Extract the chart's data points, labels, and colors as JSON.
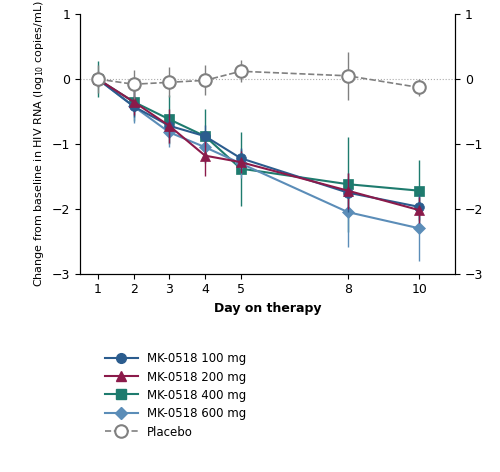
{
  "days": [
    1,
    2,
    3,
    4,
    5,
    8,
    10
  ],
  "mk100": {
    "y": [
      0.0,
      -0.42,
      -0.72,
      -0.88,
      -1.22,
      -1.75,
      -1.97
    ],
    "ci_lo": [
      -0.1,
      -0.58,
      -0.9,
      -1.05,
      -1.38,
      -2.05,
      -2.17
    ],
    "ci_hi": [
      0.1,
      -0.26,
      -0.54,
      -0.71,
      -1.06,
      -1.45,
      -1.77
    ]
  },
  "mk200": {
    "y": [
      0.0,
      -0.35,
      -0.72,
      -1.18,
      -1.28,
      -1.72,
      -2.02
    ],
    "ci_lo": [
      -0.12,
      -0.55,
      -0.98,
      -1.5,
      -1.45,
      -2.0,
      -2.22
    ],
    "ci_hi": [
      0.12,
      -0.15,
      -0.46,
      -0.86,
      -1.11,
      -1.44,
      -1.82
    ]
  },
  "mk400": {
    "y": [
      0.0,
      -0.35,
      -0.62,
      -0.88,
      -1.38,
      -1.62,
      -1.72
    ],
    "ci_lo": [
      -0.28,
      -0.65,
      -1.0,
      -1.3,
      -1.95,
      -2.35,
      -2.2
    ],
    "ci_hi": [
      0.28,
      -0.05,
      -0.24,
      -0.46,
      -0.81,
      -0.89,
      -1.24
    ]
  },
  "mk600": {
    "y": [
      0.0,
      -0.42,
      -0.82,
      -1.05,
      -1.3,
      -2.05,
      -2.3
    ],
    "ci_lo": [
      -0.08,
      -0.68,
      -1.05,
      -1.28,
      -1.52,
      -2.58,
      -2.8
    ],
    "ci_hi": [
      0.08,
      -0.16,
      -0.59,
      -0.82,
      -1.08,
      -1.52,
      -1.8
    ]
  },
  "placebo": {
    "y": [
      0.0,
      -0.08,
      -0.05,
      -0.02,
      0.12,
      0.05,
      -0.13
    ],
    "ci_lo": [
      -0.22,
      -0.3,
      -0.28,
      -0.25,
      -0.05,
      -0.32,
      -0.26
    ],
    "ci_hi": [
      0.22,
      0.14,
      0.18,
      0.21,
      0.29,
      0.42,
      0.0
    ]
  },
  "color_100": "#2b5c8e",
  "color_200": "#8b1a4a",
  "color_400": "#1e7b6e",
  "color_600": "#5b8db8",
  "color_placebo": "#808080",
  "xlabel": "Day on therapy",
  "ylabel": "Change from baseline in HIV RNA (log$_{10}$ copies/mL)",
  "yticks": [
    1,
    0,
    -1,
    -2,
    -3
  ],
  "xlim": [
    0.5,
    11.0
  ],
  "ylim": [
    -3.0,
    1.0
  ],
  "xticks": [
    1,
    2,
    3,
    4,
    5,
    8,
    10
  ],
  "legend_labels": [
    "MK-0518 100 mg",
    "MK-0518 200 mg",
    "MK-0518 400 mg",
    "MK-0518 600 mg",
    "Placebo"
  ],
  "fig_width": 5.0,
  "fig_height": 4.72,
  "dpi": 100
}
